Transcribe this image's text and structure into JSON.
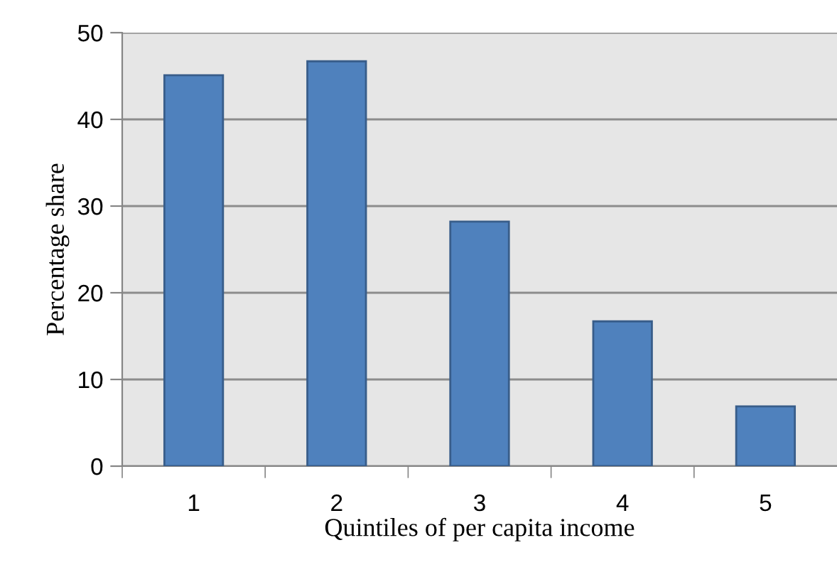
{
  "chart_data": {
    "type": "bar",
    "categories": [
      "1",
      "2",
      "3",
      "4",
      "5"
    ],
    "values": [
      45.1,
      46.7,
      28.2,
      16.7,
      6.9
    ],
    "color": "#4f81bd",
    "xlabel": "Quintiles of per capita income",
    "ylabel": "Percentage share",
    "ylim": [
      0,
      50
    ],
    "yticks": [
      0,
      10,
      20,
      30,
      40,
      50
    ],
    "grid": "y",
    "legend": false
  }
}
